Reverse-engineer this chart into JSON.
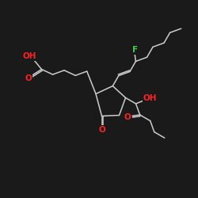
{
  "bg_color": "#1a1a1a",
  "bond_color": "#cccccc",
  "atom_colors": {
    "O": "#ff2222",
    "F": "#44cc44",
    "C": "#cccccc"
  },
  "lw": 1.1,
  "fontsize": 7.5
}
